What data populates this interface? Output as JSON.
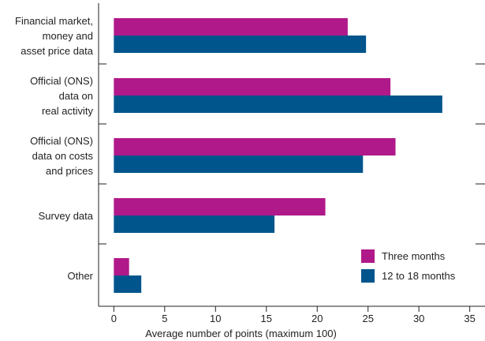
{
  "chart_data": {
    "type": "bar",
    "orientation": "horizontal",
    "categories": [
      [
        "Financial market,",
        "money and",
        "asset price data"
      ],
      [
        "Official (ONS)",
        "data on",
        "real activity"
      ],
      [
        "Official (ONS)",
        "data on costs",
        "and prices"
      ],
      [
        "Survey data"
      ],
      [
        "Other"
      ]
    ],
    "series": [
      {
        "name": "Three months",
        "color": "#b0198a",
        "values": [
          23.0,
          27.2,
          27.7,
          20.8,
          1.5
        ]
      },
      {
        "name": "12 to 18 months",
        "color": "#00558c",
        "values": [
          24.8,
          32.3,
          24.5,
          15.8,
          2.7
        ]
      }
    ],
    "xlabel": "Average number of points (maximum 100)",
    "xlim": [
      -1.5,
      36.5
    ],
    "xticks": [
      0,
      5,
      10,
      15,
      20,
      25,
      30,
      35
    ],
    "legend_position": "bottom-right",
    "grid": false
  }
}
